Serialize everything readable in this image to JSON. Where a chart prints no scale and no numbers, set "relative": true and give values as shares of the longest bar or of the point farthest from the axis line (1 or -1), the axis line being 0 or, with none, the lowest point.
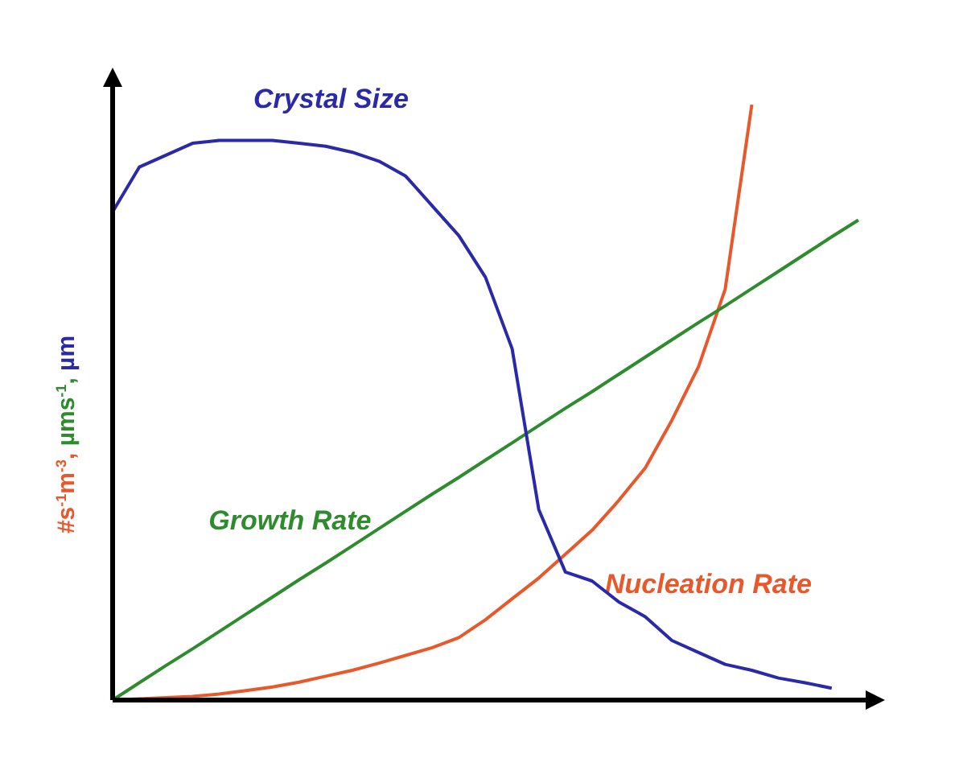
{
  "chart_data": {
    "type": "line",
    "relative": true,
    "ylabel": "#s$^{-1}$m$^{-3}$, µms$^{-1}$, µm",
    "legend": false,
    "marker": "none",
    "line_style": "solid",
    "categories": [
      null,
      null,
      null,
      null,
      null,
      null,
      null,
      null,
      null,
      null,
      null,
      null,
      null,
      null,
      null,
      null,
      null,
      null,
      null,
      null,
      null,
      null,
      null,
      null,
      null,
      null,
      null,
      null,
      null,
      null
    ],
    "series": [
      {
        "name": "Nucleation Rate",
        "color": "#e8582a",
        "values": [
          0,
          0.002,
          0.004,
          0.006,
          0.01,
          0.016,
          0.022,
          0.03,
          0.04,
          0.05,
          0.062,
          0.075,
          0.088,
          0.105,
          0.135,
          0.17,
          0.205,
          0.245,
          0.285,
          0.335,
          0.39,
          0.47,
          0.56,
          0.69,
          1,
          null,
          null,
          null,
          null,
          null
        ]
      },
      {
        "name": "Growth Rate",
        "color": "#2e8b2e",
        "values": [
          0,
          0.029,
          0.058,
          0.086,
          0.115,
          0.144,
          0.173,
          0.202,
          0.23,
          0.259,
          0.288,
          0.317,
          0.346,
          0.374,
          0.403,
          0.432,
          0.461,
          0.49,
          0.518,
          0.547,
          0.576,
          0.605,
          0.634,
          0.662,
          0.691,
          0.72,
          0.749,
          0.778,
          0.806,
          null
        ]
      },
      {
        "name": "Crystal Size",
        "color": "#2a2aa8",
        "values": [
          0.82,
          0.895,
          0.915,
          0.935,
          0.94,
          0.94,
          0.94,
          0.935,
          0.93,
          0.92,
          0.905,
          0.88,
          0.83,
          0.78,
          0.71,
          0.59,
          0.32,
          0.215,
          0.2,
          0.165,
          0.14,
          0.1,
          0.08,
          0.06,
          0.05,
          0.037,
          0.029,
          0.02,
          null,
          null
        ]
      }
    ]
  }
}
